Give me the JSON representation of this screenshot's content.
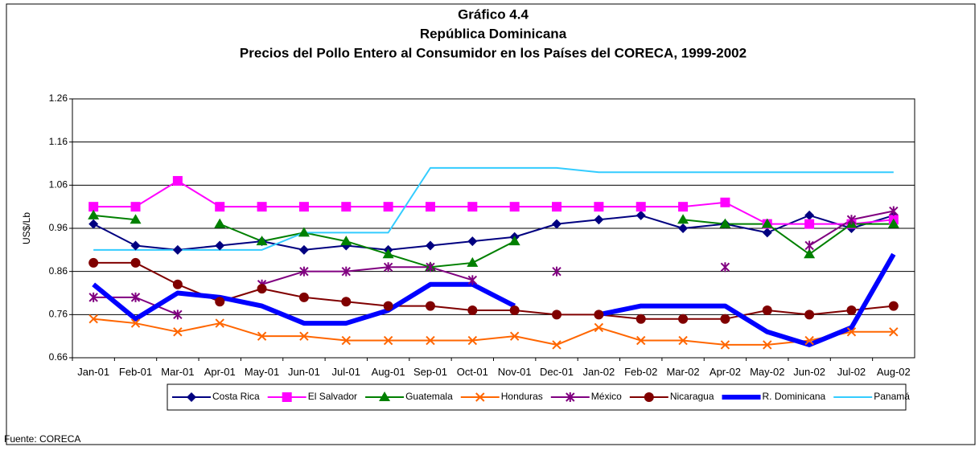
{
  "chart_data": {
    "type": "line",
    "title": "Gráfico 4.4",
    "subtitle": "República Dominicana",
    "subtitle2": "Precios del Pollo Entero al Consumidor en los Países del CORECA, 1999-2002",
    "y_label": "US$/Lb",
    "source": "Fuente: CORECA",
    "categories": [
      "Jan-01",
      "Feb-01",
      "Mar-01",
      "Apr-01",
      "May-01",
      "Jun-01",
      "Jul-01",
      "Aug-01",
      "Sep-01",
      "Oct-01",
      "Nov-01",
      "Dec-01",
      "Jan-02",
      "Feb-02",
      "Mar-02",
      "Apr-02",
      "May-02",
      "Jun-02",
      "Jul-02",
      "Aug-02"
    ],
    "ylim": [
      0.66,
      1.26
    ],
    "yticks": [
      0.66,
      0.76,
      0.86,
      0.96,
      1.06,
      1.16,
      1.26
    ],
    "grid": true,
    "legend": "bottom",
    "series": [
      {
        "name": "Costa Rica",
        "color": "#000080",
        "marker": "diamond",
        "line_width": 2,
        "values": [
          0.97,
          0.92,
          0.91,
          0.92,
          0.93,
          0.91,
          0.92,
          0.91,
          0.92,
          0.93,
          0.94,
          0.97,
          0.98,
          0.99,
          0.96,
          0.97,
          0.95,
          0.99,
          0.96,
          0.99
        ]
      },
      {
        "name": "El Salvador",
        "color": "#ff00ff",
        "marker": "square",
        "line_width": 2,
        "values": [
          1.01,
          1.01,
          1.07,
          1.01,
          1.01,
          1.01,
          1.01,
          1.01,
          1.01,
          1.01,
          1.01,
          1.01,
          1.01,
          1.01,
          1.01,
          1.02,
          0.97,
          0.97,
          0.97,
          0.98
        ]
      },
      {
        "name": "Guatemala",
        "color": "#008000",
        "marker": "triangle",
        "line_width": 2,
        "values": [
          0.99,
          0.98,
          null,
          0.97,
          0.93,
          0.95,
          0.93,
          0.9,
          0.87,
          0.88,
          0.93,
          null,
          null,
          null,
          0.98,
          0.97,
          0.97,
          0.9,
          0.97,
          0.97
        ]
      },
      {
        "name": "Honduras",
        "color": "#ff6600",
        "marker": "x",
        "line_width": 2,
        "values": [
          0.75,
          0.74,
          0.72,
          0.74,
          0.71,
          0.71,
          0.7,
          0.7,
          0.7,
          0.7,
          0.71,
          0.69,
          0.73,
          0.7,
          0.7,
          0.69,
          0.69,
          0.7,
          0.72,
          0.72
        ]
      },
      {
        "name": "México",
        "color": "#800080",
        "marker": "star",
        "line_width": 2,
        "values": [
          0.8,
          0.8,
          0.76,
          null,
          0.83,
          0.86,
          0.86,
          0.87,
          0.87,
          0.84,
          null,
          0.86,
          null,
          null,
          null,
          0.87,
          null,
          0.92,
          0.98,
          1.0
        ]
      },
      {
        "name": "Nicaragua",
        "color": "#800000",
        "marker": "circle",
        "line_width": 2,
        "values": [
          0.88,
          0.88,
          0.83,
          0.79,
          0.82,
          0.8,
          0.79,
          0.78,
          0.78,
          0.77,
          0.77,
          0.76,
          0.76,
          0.75,
          0.75,
          0.75,
          0.77,
          0.76,
          0.77,
          0.78
        ]
      },
      {
        "name": "R. Dominicana",
        "color": "#0000ff",
        "marker": "none",
        "line_width": 6,
        "values": [
          0.83,
          0.75,
          0.81,
          0.8,
          0.78,
          0.74,
          0.74,
          0.77,
          0.83,
          0.83,
          0.78,
          null,
          0.76,
          0.78,
          0.78,
          0.78,
          0.72,
          0.69,
          0.73,
          0.9
        ]
      },
      {
        "name": "Panamá",
        "color": "#33ccff",
        "marker": "none",
        "line_width": 2,
        "values": [
          0.91,
          0.91,
          0.91,
          0.91,
          0.91,
          0.95,
          0.95,
          0.95,
          1.1,
          1.1,
          1.1,
          1.1,
          1.09,
          1.09,
          1.09,
          1.09,
          1.09,
          1.09,
          1.09,
          1.09
        ]
      }
    ]
  }
}
